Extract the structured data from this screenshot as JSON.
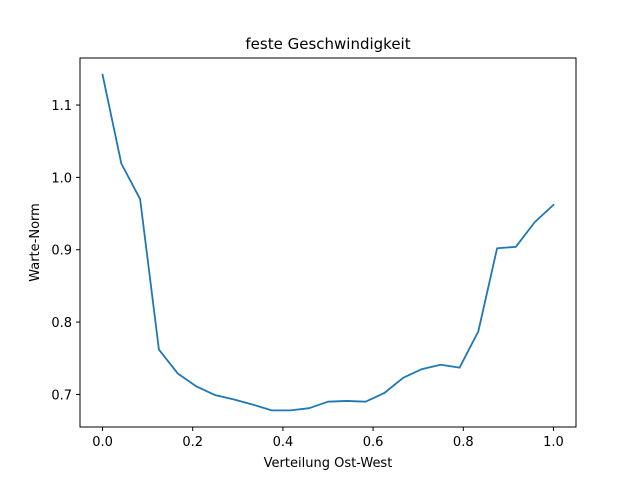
{
  "chart_data": {
    "type": "line",
    "title": "feste Geschwindigkeit",
    "xlabel": "Verteilung Ost-West",
    "ylabel": "Warte-Norm",
    "xlim": [
      -0.05,
      1.05
    ],
    "ylim": [
      0.655,
      1.165
    ],
    "xticks": [
      0.0,
      0.2,
      0.4,
      0.6,
      0.8,
      1.0
    ],
    "xtick_labels": [
      "0.0",
      "0.2",
      "0.4",
      "0.6",
      "0.8",
      "1.0"
    ],
    "yticks": [
      0.7,
      0.8,
      0.9,
      1.0,
      1.1
    ],
    "ytick_labels": [
      "0.7",
      "0.8",
      "0.9",
      "1.0",
      "1.1"
    ],
    "grid": false,
    "series": [
      {
        "color": "#1f77b4",
        "x": [
          0.0,
          0.0417,
          0.0833,
          0.125,
          0.1667,
          0.2083,
          0.25,
          0.2917,
          0.3333,
          0.375,
          0.4167,
          0.4583,
          0.5,
          0.5417,
          0.5833,
          0.625,
          0.6667,
          0.7083,
          0.75,
          0.7917,
          0.8333,
          0.875,
          0.9167,
          0.9583,
          1.0
        ],
        "y": [
          1.142,
          1.019,
          0.97,
          0.762,
          0.729,
          0.711,
          0.699,
          0.693,
          0.686,
          0.678,
          0.678,
          0.681,
          0.69,
          0.691,
          0.69,
          0.702,
          0.723,
          0.735,
          0.741,
          0.737,
          0.787,
          0.902,
          0.904,
          0.938,
          0.962
        ]
      }
    ]
  }
}
